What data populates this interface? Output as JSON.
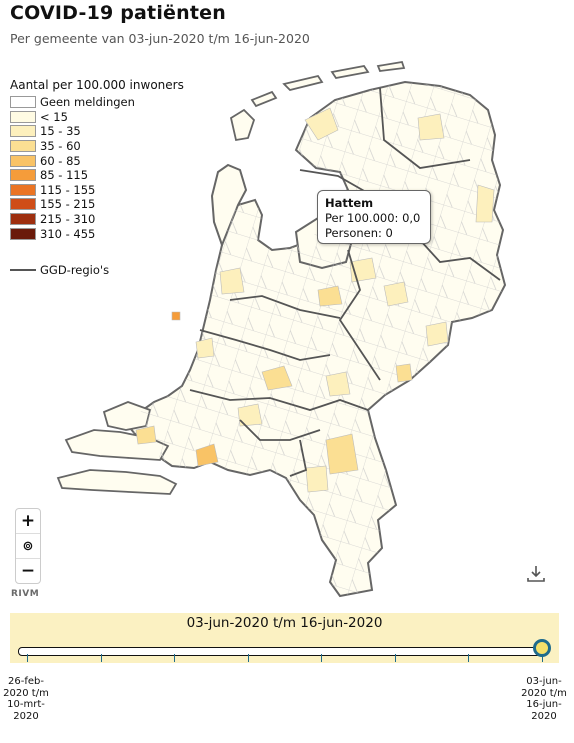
{
  "header": {
    "title": "COVID-19 patiënten",
    "subtitle": "Per gemeente van 03-jun-2020 t/m 16-jun-2020"
  },
  "legend": {
    "title": "Aantal per 100.000 inwoners",
    "items": [
      {
        "label": "Geen meldingen",
        "color": "#ffffff"
      },
      {
        "label": "< 15",
        "color": "#fffbe3"
      },
      {
        "label": "15 - 35",
        "color": "#fdf0bd"
      },
      {
        "label": "35 - 60",
        "color": "#fbdf93"
      },
      {
        "label": "60 - 85",
        "color": "#f9c366"
      },
      {
        "label": "85 - 115",
        "color": "#f59c3a"
      },
      {
        "label": "115 - 155",
        "color": "#ea7424"
      },
      {
        "label": "155 - 215",
        "color": "#cf4d18"
      },
      {
        "label": "215 - 310",
        "color": "#9e2f0f"
      },
      {
        "label": "310 - 455",
        "color": "#6a1a0a"
      }
    ],
    "boundary_label": "GGD-regio's"
  },
  "tooltip": {
    "name": "Hattem",
    "per100k": "Per 100.000: 0,0",
    "persons": "Personen: 0"
  },
  "controls": {
    "zoom_in": "+",
    "reset": "⊚",
    "zoom_out": "−",
    "download_icon": "download-icon"
  },
  "attribution": "RIVM",
  "timeline": {
    "period": "03-jun-2020 t/m 16-jun-2020",
    "start_label_1": "26-feb-",
    "start_label_2": "2020 t/m",
    "start_label_3": "10-mrt-",
    "start_label_4": "2020",
    "end_label_1": "03-jun-",
    "end_label_2": "2020 t/m",
    "end_label_3": "16-jun-",
    "end_label_4": "2020",
    "tick_count": 8,
    "selected_fraction": 1.0
  },
  "colors": {
    "ggd_border": "#555555",
    "municipality_border": "#bcbcbc",
    "timeline_bg": "#fbf1c2",
    "handle_ring": "#1f6b8c"
  }
}
